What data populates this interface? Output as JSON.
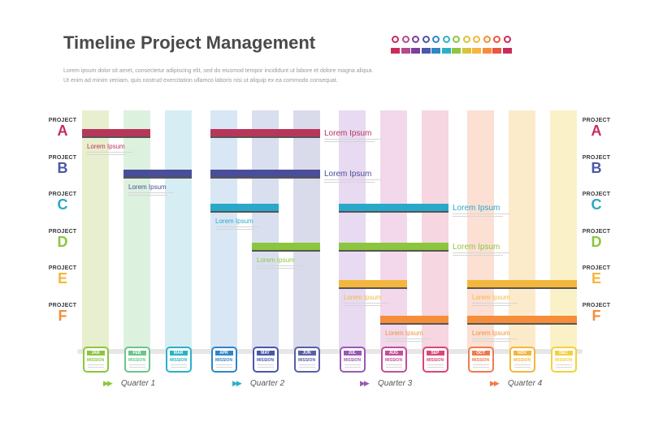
{
  "header": {
    "title": "Timeline Project Management",
    "desc_line1": "Lorem ipsum dolor sit amet, consectetur adipiscing elit, sed do eiusmod tempor incididunt ut labore et dolore magna aliqua.",
    "desc_line2": "Ut enim ad minim veniam, quis nostrud exercitation ullamco laboris nisi ut aliquip ex ea commodo consequat."
  },
  "palette": [
    "#c72d5b",
    "#b24a8e",
    "#7b3f9e",
    "#4a57a8",
    "#2f86c6",
    "#29b2c6",
    "#8cc63f",
    "#d8c33a",
    "#f4b73d",
    "#f58d3a",
    "#e9573f",
    "#c72d5b"
  ],
  "projects": [
    {
      "label": "PROJECT",
      "key": "A",
      "color": "#c72d5b"
    },
    {
      "label": "PROJECT",
      "key": "B",
      "color": "#4a57a8"
    },
    {
      "label": "PROJECT",
      "key": "C",
      "color": "#29a8c9"
    },
    {
      "label": "PROJECT",
      "key": "D",
      "color": "#8cc63f"
    },
    {
      "label": "PROJECT",
      "key": "E",
      "color": "#f4b73d"
    },
    {
      "label": "PROJECT",
      "key": "F",
      "color": "#f58d3a"
    }
  ],
  "months": [
    {
      "name": "JAN",
      "mission": "MISSION",
      "color": "#8cc63f",
      "column": "#e8efcf"
    },
    {
      "name": "FEB",
      "mission": "MISSION",
      "color": "#6cc58a",
      "column": "#ddf1df"
    },
    {
      "name": "MAR",
      "mission": "MISSION",
      "color": "#29b2c6",
      "column": "#d6eef3"
    },
    {
      "name": "APR",
      "mission": "MISSION",
      "color": "#2f86c6",
      "column": "#d9e7f5"
    },
    {
      "name": "MAY",
      "mission": "MISSION",
      "color": "#4a57a8",
      "column": "#dadff0"
    },
    {
      "name": "JUN",
      "mission": "MISSION",
      "color": "#5a5fa8",
      "column": "#d9dbeb"
    },
    {
      "name": "JUL",
      "mission": "MISSION",
      "color": "#9b59b6",
      "column": "#e8daf1"
    },
    {
      "name": "AUG",
      "mission": "MISSION",
      "color": "#c24f9b",
      "column": "#f2d8ea"
    },
    {
      "name": "SEP",
      "mission": "MISSION",
      "color": "#d9467a",
      "column": "#f6d6e0"
    },
    {
      "name": "OCT",
      "mission": "MISSION",
      "color": "#f07b4f",
      "column": "#fbe0d3"
    },
    {
      "name": "NOV",
      "mission": "MISSION",
      "color": "#f4b73d",
      "column": "#fcebcb"
    },
    {
      "name": "DEC",
      "mission": "MISSION",
      "color": "#f4d03f",
      "column": "#fbf1c9"
    }
  ],
  "quarters": [
    {
      "label": "Quarter 1",
      "color": "#8cc63f"
    },
    {
      "label": "Quarter 2",
      "color": "#29b2c6"
    },
    {
      "label": "Quarter 3",
      "color": "#9b59b6"
    },
    {
      "label": "Quarter 4",
      "color": "#f07b4f"
    }
  ],
  "chart_data": {
    "type": "bar",
    "subtype": "gantt",
    "categories": [
      "JAN",
      "FEB",
      "MAR",
      "APR",
      "MAY",
      "JUN",
      "JUL",
      "AUG",
      "SEP",
      "OCT",
      "NOV",
      "DEC"
    ],
    "tasks": [
      {
        "project": "A",
        "color": "#b8365a",
        "segments": [
          {
            "start": 1,
            "end": 2,
            "label": "Lorem Ipsum",
            "label_side": "below"
          },
          {
            "start": 4,
            "end": 6,
            "label": "Lorem Ipsum",
            "label_side": "right"
          }
        ]
      },
      {
        "project": "B",
        "color": "#4a4e99",
        "segments": [
          {
            "start": 2,
            "end": 3,
            "label": "Lorem Ipsum",
            "label_side": "below"
          },
          {
            "start": 4,
            "end": 6,
            "label": "Lorem Ipsum",
            "label_side": "right"
          }
        ]
      },
      {
        "project": "C",
        "color": "#29a8c9",
        "segments": [
          {
            "start": 4,
            "end": 5,
            "label": "Lorem Ipsum",
            "label_side": "below"
          },
          {
            "start": 7,
            "end": 9,
            "label": "Lorem Ipsum",
            "label_side": "right"
          }
        ]
      },
      {
        "project": "D",
        "color": "#8cc63f",
        "segments": [
          {
            "start": 5,
            "end": 6,
            "label": "Lorem Ipsum",
            "label_side": "below"
          },
          {
            "start": 7,
            "end": 9,
            "label": "Lorem Ipsum",
            "label_side": "right"
          }
        ]
      },
      {
        "project": "E",
        "color": "#f4b73d",
        "segments": [
          {
            "start": 7,
            "end": 8,
            "label": "Lorem Ipsum",
            "label_side": "below"
          },
          {
            "start": 10,
            "end": 12,
            "label": "Lorem Ipsum",
            "label_side": "below"
          }
        ]
      },
      {
        "project": "F",
        "color": "#f58d3a",
        "segments": [
          {
            "start": 8,
            "end": 9,
            "label": "Lorem Ipsum",
            "label_side": "below"
          },
          {
            "start": 10,
            "end": 12,
            "label": "Lorem Ipsum",
            "label_side": "below"
          }
        ]
      }
    ]
  }
}
